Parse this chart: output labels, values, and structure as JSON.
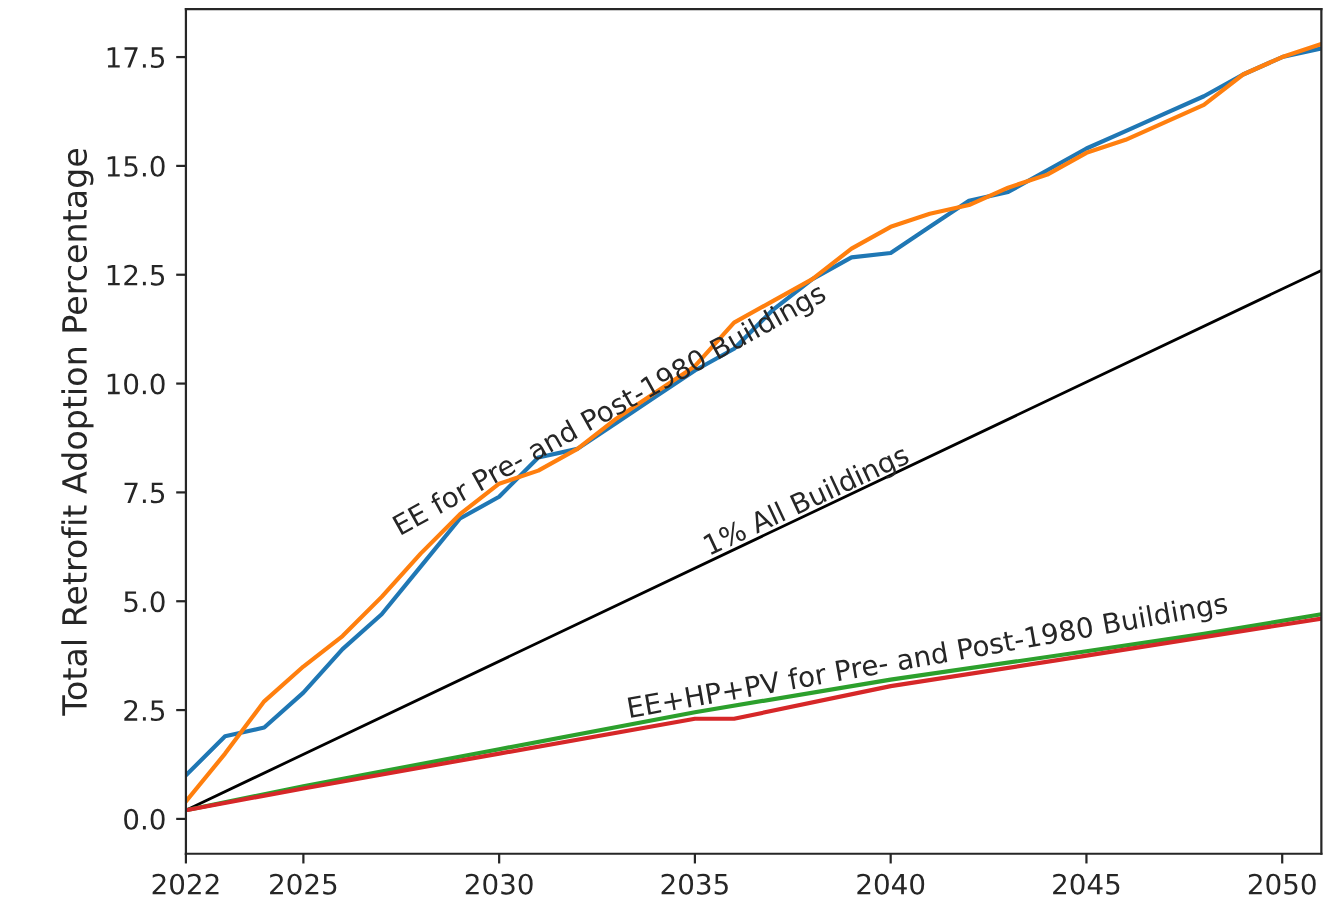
{
  "chart_data": {
    "type": "line",
    "ylabel": "Total Retrofit Adoption Percentage",
    "xlim": [
      2022,
      2051
    ],
    "xticks": [
      2022,
      2025,
      2030,
      2035,
      2040,
      2045,
      2050
    ],
    "ylim": [
      -0.8,
      18.6
    ],
    "yticks": [
      {
        "value": 0,
        "label": "0.0"
      },
      {
        "value": 2.5,
        "label": "2.5"
      },
      {
        "value": 5,
        "label": "5.0"
      },
      {
        "value": 7.5,
        "label": "7.5"
      },
      {
        "value": 10,
        "label": "10.0"
      },
      {
        "value": 12.5,
        "label": "12.5"
      },
      {
        "value": 15,
        "label": "15.0"
      },
      {
        "value": 17.5,
        "label": "17.5"
      }
    ],
    "grid": false,
    "series": [
      {
        "color": "#1f77b4",
        "x": [
          2022,
          2023,
          2024,
          2025,
          2026,
          2027,
          2028,
          2029,
          2030,
          2031,
          2032,
          2033,
          2034,
          2035,
          2036,
          2037,
          2038,
          2039,
          2040,
          2041,
          2042,
          2043,
          2044,
          2045,
          2046,
          2047,
          2048,
          2049,
          2050,
          2051
        ],
        "values": [
          1.0,
          1.9,
          2.1,
          2.9,
          3.9,
          4.7,
          5.8,
          6.9,
          7.4,
          8.3,
          8.5,
          9.1,
          9.7,
          10.3,
          10.8,
          11.7,
          12.4,
          12.9,
          13.0,
          13.6,
          14.2,
          14.4,
          14.9,
          15.4,
          15.8,
          16.2,
          16.6,
          17.1,
          17.5,
          17.7
        ]
      },
      {
        "color": "#ff7f0e",
        "x": [
          2022,
          2023,
          2024,
          2025,
          2026,
          2027,
          2028,
          2029,
          2030,
          2031,
          2032,
          2033,
          2034,
          2035,
          2036,
          2037,
          2038,
          2039,
          2040,
          2041,
          2042,
          2043,
          2044,
          2045,
          2046,
          2047,
          2048,
          2049,
          2050,
          2051
        ],
        "values": [
          0.4,
          1.5,
          2.7,
          3.5,
          4.2,
          5.1,
          6.1,
          7.0,
          7.7,
          8.0,
          8.5,
          9.2,
          9.8,
          10.4,
          11.4,
          11.9,
          12.4,
          13.1,
          13.6,
          13.9,
          14.1,
          14.5,
          14.8,
          15.3,
          15.6,
          16.0,
          16.4,
          17.1,
          17.5,
          17.8
        ]
      },
      {
        "color": "#000000",
        "x": [
          2022,
          2051
        ],
        "values": [
          0.2,
          12.6
        ]
      },
      {
        "color": "#2ca02c",
        "x": [
          2022,
          2025,
          2030,
          2035,
          2040,
          2045,
          2048,
          2051
        ],
        "values": [
          0.2,
          0.75,
          1.6,
          2.45,
          3.2,
          3.85,
          4.25,
          4.7
        ]
      },
      {
        "color": "#d62728",
        "x": [
          2022,
          2025,
          2030,
          2035,
          2036,
          2040,
          2045,
          2051
        ],
        "values": [
          0.2,
          0.7,
          1.5,
          2.3,
          2.3,
          3.05,
          3.75,
          4.6
        ]
      }
    ],
    "annotations": [
      {
        "text": "EE for Pre- and Post-1980 Buildings",
        "x": 2033,
        "y": 9.1
      },
      {
        "text": "1% All Buildings",
        "x": 2038,
        "y": 7.0
      },
      {
        "text": "EE+HP+PV for Pre- and Post-1980 Buildings",
        "x": 2041,
        "y": 3.4
      }
    ]
  }
}
